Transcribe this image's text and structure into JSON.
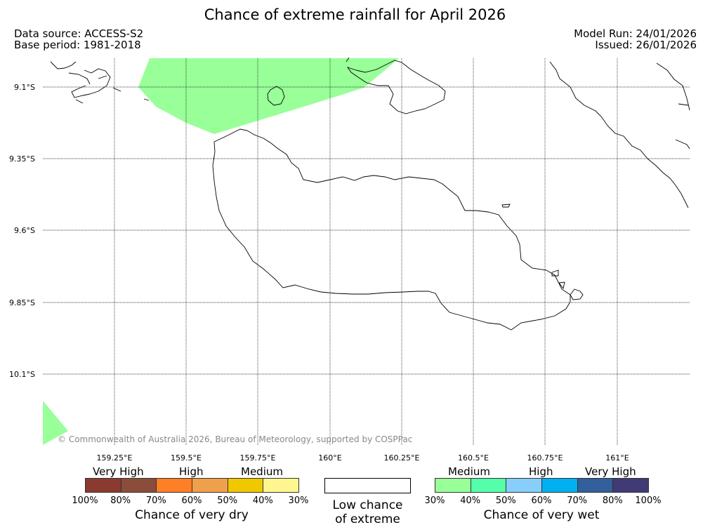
{
  "title": "Chance of extreme rainfall for April 2026",
  "meta": {
    "data_source": "Data source: ACCESS-S2",
    "base_period": "Base period: 1981-2018",
    "model_run": "Model Run: 24/01/2026",
    "issued": "Issued: 26/01/2026"
  },
  "map": {
    "lat_labels": [
      "9.1°S",
      "9.35°S",
      "9.6°S",
      "9.85°S",
      "10.1°S"
    ],
    "lon_labels": [
      "159.25°E",
      "159.5°E",
      "159.75°E",
      "160°E",
      "160.25°E",
      "160.5°E",
      "160.75°E",
      "161°E"
    ],
    "copyright": "© Commonwealth of Australia 2026, Bureau of Meteorology, supported by COSPPac",
    "colors": {
      "land_outline": "#000000",
      "grid": "#000000",
      "wet_medium_fill": "#99ff99"
    }
  },
  "legend": {
    "dry": {
      "headings": [
        "Very High",
        "High",
        "Medium"
      ],
      "colors": [
        "#8b3a2f",
        "#8b4d3a",
        "#ff7f27",
        "#f0a04b",
        "#f0c800",
        "#fff68f"
      ],
      "ticks": [
        "100%",
        "80%",
        "70%",
        "60%",
        "50%",
        "40%",
        "30%"
      ],
      "title": "Chance of very dry"
    },
    "low": {
      "line1": "Low chance",
      "line2": "of extreme"
    },
    "wet": {
      "headings": [
        "Medium",
        "High",
        "Very High"
      ],
      "colors": [
        "#99ff99",
        "#55ffaa",
        "#87cefa",
        "#00b0f0",
        "#335f9a",
        "#403a75"
      ],
      "ticks": [
        "30%",
        "40%",
        "50%",
        "60%",
        "70%",
        "80%",
        "100%"
      ],
      "title": "Chance of very wet"
    }
  }
}
